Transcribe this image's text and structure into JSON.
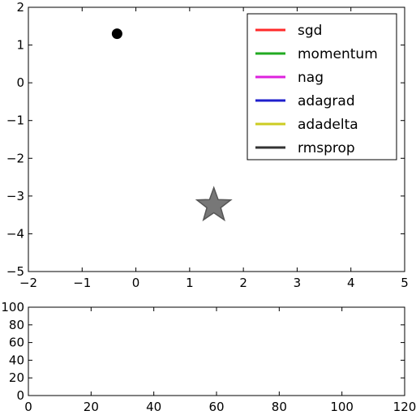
{
  "chart_data": [
    {
      "type": "contour",
      "title": "",
      "xlabel": "",
      "ylabel": "",
      "xlim": [
        -2,
        5
      ],
      "ylim": [
        -5,
        2
      ],
      "xticks": [
        -2,
        -1,
        0,
        1,
        2,
        3,
        4,
        5
      ],
      "yticks": [
        -5,
        -4,
        -3,
        -2,
        -1,
        0,
        1,
        2
      ],
      "xtick_labels": [
        "−2",
        "−1",
        "0",
        "1",
        "2",
        "3",
        "4",
        "5"
      ],
      "ytick_labels": [
        "−5",
        "−4",
        "−3",
        "−2",
        "−1",
        "0",
        "1",
        "2"
      ],
      "grid": false,
      "colormap": "jet",
      "minimum_marker": {
        "x": 1.45,
        "y": -3.25,
        "shape": "star",
        "color": "#777777"
      },
      "start_point": {
        "x": -0.35,
        "y": 1.3,
        "color": "#000000"
      },
      "legend": {
        "placement": "top-right",
        "entries": [
          {
            "label": "sgd",
            "color": "#ff2a2a"
          },
          {
            "label": "momentum",
            "color": "#22aa22"
          },
          {
            "label": "nag",
            "color": "#dd22dd"
          },
          {
            "label": "adagrad",
            "color": "#1f1fcc"
          },
          {
            "label": "adadelta",
            "color": "#cccc22"
          },
          {
            "label": "rmsprop",
            "color": "#333333"
          }
        ]
      }
    },
    {
      "type": "line",
      "title": "",
      "xlabel": "",
      "ylabel": "",
      "xlim": [
        0,
        120
      ],
      "ylim": [
        0,
        100
      ],
      "xticks": [
        0,
        20,
        40,
        60,
        80,
        100,
        120
      ],
      "yticks": [
        0,
        20,
        40,
        60,
        80,
        100
      ],
      "xtick_labels": [
        "0",
        "20",
        "40",
        "60",
        "80",
        "100",
        "120"
      ],
      "ytick_labels": [
        "0",
        "20",
        "40",
        "60",
        "80",
        "100"
      ],
      "grid": false,
      "series": []
    }
  ]
}
